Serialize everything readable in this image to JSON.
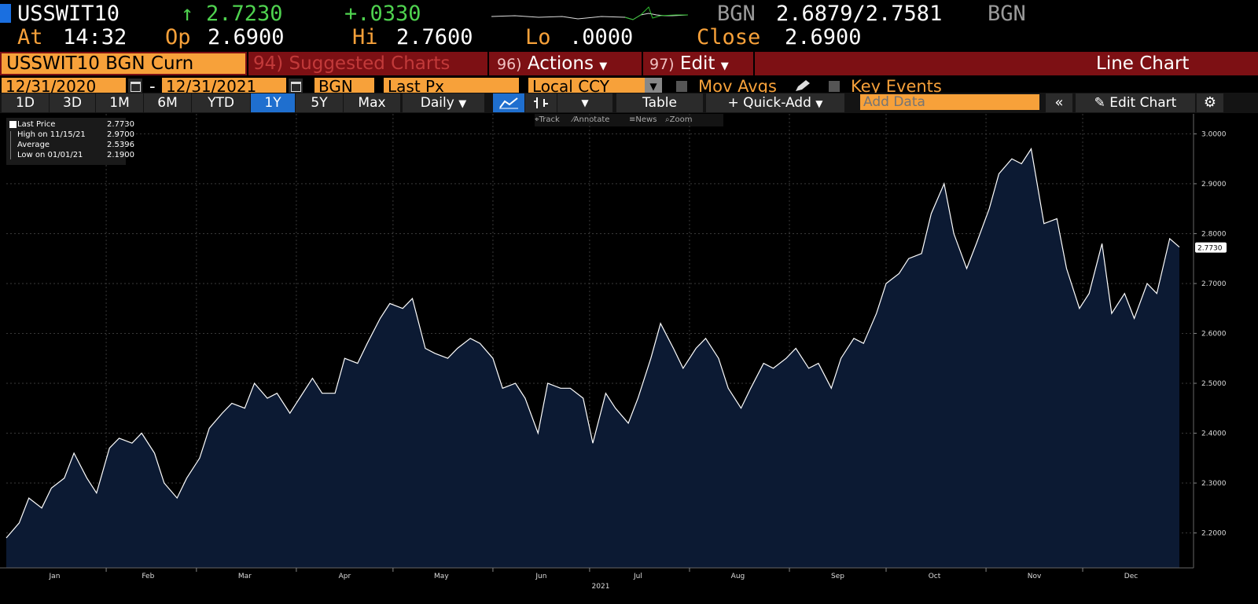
{
  "header": {
    "ticker": "USSWIT10",
    "last_arrow": "↑",
    "last": "2.7230",
    "change": "+.0330",
    "bid_src": "BGN",
    "bid_ask": "2.6879/2.7581",
    "ask_src": "BGN",
    "at_label": "At",
    "at_time": "14:32",
    "op_label": "Op",
    "op_value": "2.6900",
    "hi_label": "Hi",
    "hi_value": "2.7600",
    "lo_label": "Lo",
    "lo_value": ".0000",
    "close_label": "Close",
    "close_value": "2.6900"
  },
  "menubar": {
    "security": "USSWIT10 BGN Curn",
    "suggested": "94) Suggested Charts",
    "actions_num": "96)",
    "actions": "Actions",
    "edit_num": "97)",
    "edit": "Edit",
    "chart_type": "Line Chart"
  },
  "params": {
    "start_date": "12/31/2020",
    "dash": "-",
    "end_date": "12/31/2021",
    "source": "BGN",
    "field": "Last Px",
    "currency": "Local CCY",
    "mov_avgs": "Mov Avgs",
    "key_events": "Key Events"
  },
  "toolbar": {
    "periods": [
      "1D",
      "3D",
      "1M",
      "6M",
      "YTD",
      "1Y",
      "5Y",
      "Max"
    ],
    "active_period": "1Y",
    "frequency": "Daily",
    "table": "Table",
    "quick_add": "Quick-Add",
    "add_data_placeholder": "Add Data",
    "edit_chart": "Edit Chart",
    "track": "Track",
    "annotate": "Annotate",
    "news": "News",
    "zoom": "Zoom"
  },
  "legend": {
    "last_price_label": "Last Price",
    "last_price_value": "2.7730",
    "high_label": "High on 11/15/21",
    "high_value": "2.9700",
    "average_label": "Average",
    "average_value": "2.5396",
    "low_label": "Low on 01/01/21",
    "low_value": "2.1900"
  },
  "colors": {
    "accent_orange": "#f7a13a",
    "menu_red": "#7d1014",
    "active_blue": "#1f6fcf",
    "up_green": "#4fd24f",
    "area_fill": "#0c1a33",
    "line": "#ffffff"
  },
  "chart_data": {
    "type": "area",
    "title": "",
    "xlabel": "2021",
    "ylabel": "",
    "ylim": [
      2.13,
      3.04
    ],
    "yticks": [
      "2.2000",
      "2.3000",
      "2.4000",
      "2.5000",
      "2.6000",
      "2.7000",
      "2.8000",
      "2.9000",
      "3.0000"
    ],
    "month_labels": [
      "Jan",
      "Feb",
      "Mar",
      "Apr",
      "May",
      "Jun",
      "Jul",
      "Aug",
      "Sep",
      "Oct",
      "Nov",
      "Dec"
    ],
    "year_label": "2021",
    "last_value_tag": "2.7730",
    "grid": true,
    "series": [
      {
        "values": [
          {
            "x": "2021-01-01",
            "y": 2.19
          },
          {
            "x": "2021-01-05",
            "y": 2.22
          },
          {
            "x": "2021-01-08",
            "y": 2.27
          },
          {
            "x": "2021-01-12",
            "y": 2.25
          },
          {
            "x": "2021-01-15",
            "y": 2.29
          },
          {
            "x": "2021-01-19",
            "y": 2.31
          },
          {
            "x": "2021-01-22",
            "y": 2.36
          },
          {
            "x": "2021-01-26",
            "y": 2.31
          },
          {
            "x": "2021-01-29",
            "y": 2.28
          },
          {
            "x": "2021-02-02",
            "y": 2.37
          },
          {
            "x": "2021-02-05",
            "y": 2.39
          },
          {
            "x": "2021-02-09",
            "y": 2.38
          },
          {
            "x": "2021-02-12",
            "y": 2.4
          },
          {
            "x": "2021-02-16",
            "y": 2.36
          },
          {
            "x": "2021-02-19",
            "y": 2.3
          },
          {
            "x": "2021-02-23",
            "y": 2.27
          },
          {
            "x": "2021-02-26",
            "y": 2.31
          },
          {
            "x": "2021-03-02",
            "y": 2.35
          },
          {
            "x": "2021-03-05",
            "y": 2.41
          },
          {
            "x": "2021-03-09",
            "y": 2.44
          },
          {
            "x": "2021-03-12",
            "y": 2.46
          },
          {
            "x": "2021-03-16",
            "y": 2.45
          },
          {
            "x": "2021-03-19",
            "y": 2.5
          },
          {
            "x": "2021-03-23",
            "y": 2.47
          },
          {
            "x": "2021-03-26",
            "y": 2.48
          },
          {
            "x": "2021-03-30",
            "y": 2.44
          },
          {
            "x": "2021-04-02",
            "y": 2.47
          },
          {
            "x": "2021-04-06",
            "y": 2.51
          },
          {
            "x": "2021-04-09",
            "y": 2.48
          },
          {
            "x": "2021-04-13",
            "y": 2.48
          },
          {
            "x": "2021-04-16",
            "y": 2.55
          },
          {
            "x": "2021-04-20",
            "y": 2.54
          },
          {
            "x": "2021-04-23",
            "y": 2.58
          },
          {
            "x": "2021-04-27",
            "y": 2.63
          },
          {
            "x": "2021-04-30",
            "y": 2.66
          },
          {
            "x": "2021-05-04",
            "y": 2.65
          },
          {
            "x": "2021-05-07",
            "y": 2.67
          },
          {
            "x": "2021-05-11",
            "y": 2.57
          },
          {
            "x": "2021-05-14",
            "y": 2.56
          },
          {
            "x": "2021-05-18",
            "y": 2.55
          },
          {
            "x": "2021-05-21",
            "y": 2.57
          },
          {
            "x": "2021-05-25",
            "y": 2.59
          },
          {
            "x": "2021-05-28",
            "y": 2.58
          },
          {
            "x": "2021-06-01",
            "y": 2.55
          },
          {
            "x": "2021-06-04",
            "y": 2.49
          },
          {
            "x": "2021-06-08",
            "y": 2.5
          },
          {
            "x": "2021-06-11",
            "y": 2.47
          },
          {
            "x": "2021-06-15",
            "y": 2.4
          },
          {
            "x": "2021-06-18",
            "y": 2.5
          },
          {
            "x": "2021-06-22",
            "y": 2.49
          },
          {
            "x": "2021-06-25",
            "y": 2.49
          },
          {
            "x": "2021-06-29",
            "y": 2.47
          },
          {
            "x": "2021-07-02",
            "y": 2.38
          },
          {
            "x": "2021-07-06",
            "y": 2.48
          },
          {
            "x": "2021-07-09",
            "y": 2.45
          },
          {
            "x": "2021-07-13",
            "y": 2.42
          },
          {
            "x": "2021-07-16",
            "y": 2.47
          },
          {
            "x": "2021-07-20",
            "y": 2.55
          },
          {
            "x": "2021-07-23",
            "y": 2.62
          },
          {
            "x": "2021-07-27",
            "y": 2.57
          },
          {
            "x": "2021-07-30",
            "y": 2.53
          },
          {
            "x": "2021-08-03",
            "y": 2.57
          },
          {
            "x": "2021-08-06",
            "y": 2.59
          },
          {
            "x": "2021-08-10",
            "y": 2.55
          },
          {
            "x": "2021-08-13",
            "y": 2.49
          },
          {
            "x": "2021-08-17",
            "y": 2.45
          },
          {
            "x": "2021-08-20",
            "y": 2.49
          },
          {
            "x": "2021-08-24",
            "y": 2.54
          },
          {
            "x": "2021-08-27",
            "y": 2.53
          },
          {
            "x": "2021-08-31",
            "y": 2.55
          },
          {
            "x": "2021-09-03",
            "y": 2.57
          },
          {
            "x": "2021-09-07",
            "y": 2.53
          },
          {
            "x": "2021-09-10",
            "y": 2.54
          },
          {
            "x": "2021-09-14",
            "y": 2.49
          },
          {
            "x": "2021-09-17",
            "y": 2.55
          },
          {
            "x": "2021-09-21",
            "y": 2.59
          },
          {
            "x": "2021-09-24",
            "y": 2.58
          },
          {
            "x": "2021-09-28",
            "y": 2.64
          },
          {
            "x": "2021-10-01",
            "y": 2.7
          },
          {
            "x": "2021-10-05",
            "y": 2.72
          },
          {
            "x": "2021-10-08",
            "y": 2.75
          },
          {
            "x": "2021-10-12",
            "y": 2.76
          },
          {
            "x": "2021-10-15",
            "y": 2.84
          },
          {
            "x": "2021-10-19",
            "y": 2.9
          },
          {
            "x": "2021-10-22",
            "y": 2.8
          },
          {
            "x": "2021-10-26",
            "y": 2.73
          },
          {
            "x": "2021-10-29",
            "y": 2.78
          },
          {
            "x": "2021-11-02",
            "y": 2.85
          },
          {
            "x": "2021-11-05",
            "y": 2.92
          },
          {
            "x": "2021-11-09",
            "y": 2.95
          },
          {
            "x": "2021-11-12",
            "y": 2.94
          },
          {
            "x": "2021-11-15",
            "y": 2.97
          },
          {
            "x": "2021-11-19",
            "y": 2.82
          },
          {
            "x": "2021-11-23",
            "y": 2.83
          },
          {
            "x": "2021-11-26",
            "y": 2.73
          },
          {
            "x": "2021-11-30",
            "y": 2.65
          },
          {
            "x": "2021-12-03",
            "y": 2.68
          },
          {
            "x": "2021-12-07",
            "y": 2.78
          },
          {
            "x": "2021-12-10",
            "y": 2.64
          },
          {
            "x": "2021-12-14",
            "y": 2.68
          },
          {
            "x": "2021-12-17",
            "y": 2.63
          },
          {
            "x": "2021-12-21",
            "y": 2.7
          },
          {
            "x": "2021-12-24",
            "y": 2.68
          },
          {
            "x": "2021-12-28",
            "y": 2.79
          },
          {
            "x": "2021-12-31",
            "y": 2.773
          }
        ]
      }
    ]
  }
}
